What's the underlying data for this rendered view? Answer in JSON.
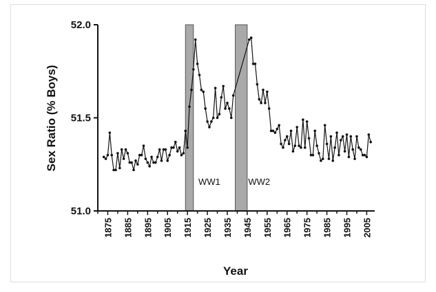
{
  "chart_data": {
    "type": "line",
    "title": "",
    "xlabel": "Year",
    "ylabel": "Sex Ratio (% Boys)",
    "xlim": [
      1870,
      2009
    ],
    "ylim": [
      51.0,
      52.0
    ],
    "yticks": [
      51.0,
      51.5,
      52.0
    ],
    "ytick_labels": [
      "51.0",
      "51.5",
      "52.0"
    ],
    "xticks": [
      1875,
      1885,
      1895,
      1905,
      1915,
      1925,
      1935,
      1945,
      1955,
      1965,
      1975,
      1985,
      1995,
      2005
    ],
    "xtick_labels": [
      "1875",
      "1885",
      "1895",
      "1905",
      "1915",
      "1925",
      "1935",
      "1945",
      "1955",
      "1965",
      "1975",
      "1985",
      "1995",
      "2005"
    ],
    "grid": false,
    "legend": "none",
    "annotations": [
      {
        "label": "WW1",
        "x": 1920.5,
        "y": 51.14
      },
      {
        "label": "WW2",
        "x": 1945.5,
        "y": 51.14
      }
    ],
    "shaded_spans": [
      {
        "name": "WW1",
        "x_start": 1914,
        "x_end": 1918
      },
      {
        "name": "WW2",
        "x_start": 1939,
        "x_end": 1945
      }
    ],
    "series": [
      {
        "x": [
          1873,
          1874,
          1875,
          1876,
          1877,
          1878,
          1879,
          1880,
          1881,
          1882,
          1883,
          1884,
          1885,
          1886,
          1887,
          1888,
          1889,
          1890,
          1891,
          1892,
          1893,
          1894,
          1895,
          1896,
          1897,
          1898,
          1899,
          1900,
          1901,
          1902,
          1903,
          1904,
          1905,
          1906,
          1907,
          1908,
          1909,
          1910,
          1911,
          1912,
          1913,
          1914,
          1915,
          1916,
          1917,
          1918,
          1919,
          1920,
          1921,
          1922,
          1923,
          1924,
          1925,
          1926,
          1927,
          1928,
          1929,
          1930,
          1931,
          1932,
          1933,
          1934,
          1935,
          1936,
          1937,
          1938,
          1946,
          1947,
          1948,
          1949,
          1950,
          1951,
          1952,
          1953,
          1954,
          1955,
          1956,
          1957,
          1958,
          1959,
          1960,
          1961,
          1962,
          1963,
          1964,
          1965,
          1966,
          1967,
          1968,
          1969,
          1970,
          1971,
          1972,
          1973,
          1974,
          1975,
          1976,
          1977,
          1978,
          1979,
          1980,
          1981,
          1982,
          1983,
          1984,
          1985,
          1986,
          1987,
          1988,
          1989,
          1990,
          1991,
          1992,
          1993,
          1994,
          1995,
          1996,
          1997,
          1998,
          1999,
          2000,
          2001,
          2002,
          2003,
          2004,
          2005,
          2006,
          2007
        ],
        "values": [
          51.29,
          51.28,
          51.3,
          51.42,
          51.3,
          51.22,
          51.22,
          51.31,
          51.23,
          51.33,
          51.28,
          51.33,
          51.31,
          51.26,
          51.26,
          51.22,
          51.27,
          51.25,
          51.3,
          51.3,
          51.35,
          51.28,
          51.26,
          51.24,
          51.29,
          51.26,
          51.26,
          51.29,
          51.33,
          51.27,
          51.33,
          51.33,
          51.27,
          51.3,
          51.34,
          51.34,
          51.37,
          51.32,
          51.34,
          51.3,
          51.31,
          51.43,
          51.34,
          51.56,
          51.65,
          51.76,
          51.92,
          51.79,
          51.73,
          51.65,
          51.64,
          51.55,
          51.48,
          51.45,
          51.48,
          51.5,
          51.66,
          51.5,
          51.52,
          51.61,
          51.67,
          51.55,
          51.58,
          51.55,
          51.5,
          51.62,
          51.92,
          51.93,
          51.79,
          51.79,
          51.68,
          51.6,
          51.58,
          51.65,
          51.58,
          51.64,
          51.55,
          51.43,
          51.43,
          51.42,
          51.44,
          51.46,
          51.36,
          51.34,
          51.38,
          51.4,
          51.36,
          51.43,
          51.32,
          51.35,
          51.45,
          51.35,
          51.34,
          51.49,
          51.34,
          51.48,
          51.39,
          51.3,
          51.3,
          51.43,
          51.35,
          51.31,
          51.27,
          51.28,
          51.46,
          51.36,
          51.28,
          51.4,
          51.27,
          51.34,
          51.42,
          51.3,
          51.38,
          51.4,
          51.32,
          51.41,
          51.29,
          51.4,
          51.33,
          51.28,
          51.4,
          51.34,
          51.33,
          51.3,
          51.3,
          51.29,
          51.41,
          51.37
        ]
      }
    ]
  }
}
